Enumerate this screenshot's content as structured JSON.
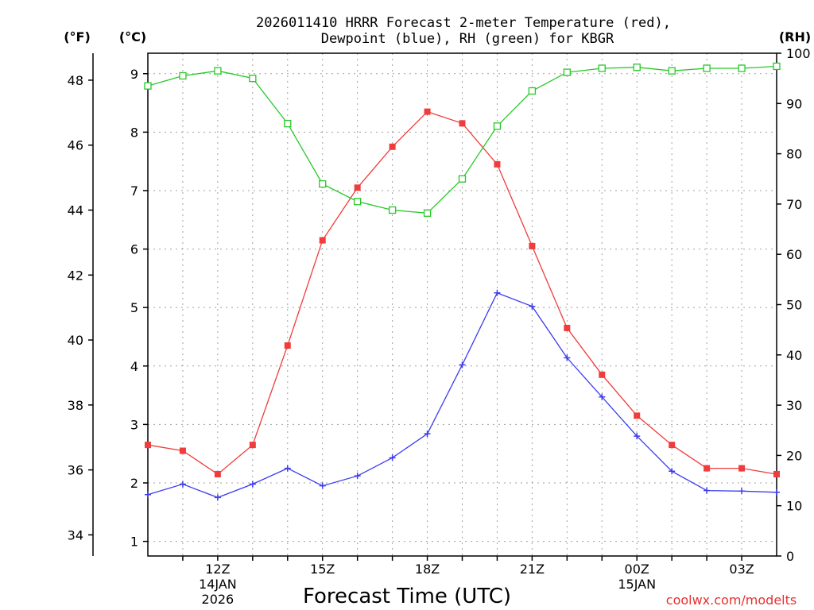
{
  "chart_data": {
    "type": "line",
    "title_line1": "2026011410 HRRR Forecast 2-meter Temperature (red),",
    "title_line2": "Dewpoint (blue), RH (green) for KBGR",
    "unit_f": "(°F)",
    "unit_c": "(°C)",
    "unit_rh": "(RH)",
    "xlabel": "Forecast Time (UTC)",
    "credit": "coolwx.com/modelts",
    "x": [
      10,
      11,
      12,
      13,
      14,
      15,
      16,
      17,
      18,
      19,
      20,
      21,
      22,
      23,
      24,
      25,
      26,
      27,
      28
    ],
    "xlim": [
      10,
      28
    ],
    "x_ticks": [
      {
        "x": 12,
        "label": "12Z",
        "sub1": "14JAN",
        "sub2": "2026"
      },
      {
        "x": 15,
        "label": "15Z",
        "sub1": "",
        "sub2": ""
      },
      {
        "x": 18,
        "label": "18Z",
        "sub1": "",
        "sub2": ""
      },
      {
        "x": 21,
        "label": "21Z",
        "sub1": "",
        "sub2": ""
      },
      {
        "x": 24,
        "label": "00Z",
        "sub1": "15JAN",
        "sub2": ""
      },
      {
        "x": 27,
        "label": "03Z",
        "sub1": "",
        "sub2": ""
      }
    ],
    "c_axis": {
      "ylim": [
        0.75,
        9.35
      ],
      "ticks": [
        "1",
        "2",
        "3",
        "4",
        "5",
        "6",
        "7",
        "8",
        "9"
      ]
    },
    "f_axis": {
      "ticks": [
        "34",
        "36",
        "38",
        "40",
        "42",
        "44",
        "46",
        "48"
      ]
    },
    "rh_axis": {
      "ylim": [
        0,
        100
      ],
      "ticks": [
        "0",
        "10",
        "20",
        "30",
        "40",
        "50",
        "60",
        "70",
        "80",
        "90",
        "100"
      ]
    },
    "series": [
      {
        "name": "Temperature",
        "units": "C",
        "color": "#f03c3c",
        "marker": "filled-square",
        "values": [
          2.65,
          2.55,
          2.15,
          2.65,
          4.35,
          6.15,
          7.05,
          7.75,
          8.35,
          8.15,
          7.45,
          6.05,
          4.65,
          3.85,
          3.15,
          2.65,
          2.25,
          2.25,
          2.15
        ]
      },
      {
        "name": "Dewpoint",
        "units": "C",
        "color": "#3c3cf0",
        "marker": "plus",
        "values": [
          1.8,
          1.98,
          1.75,
          1.98,
          2.25,
          1.95,
          2.12,
          2.43,
          2.84,
          4.02,
          5.25,
          5.02,
          4.14,
          3.47,
          2.8,
          2.2,
          1.87,
          1.86,
          1.84
        ]
      },
      {
        "name": "RH",
        "units": "%",
        "color": "#28c828",
        "marker": "open-square",
        "values": [
          93.5,
          95.5,
          96.5,
          95.0,
          86.0,
          74.0,
          70.5,
          68.8,
          68.2,
          75.0,
          85.5,
          92.5,
          96.2,
          97.0,
          97.2,
          96.5,
          97.0,
          97.0,
          97.4
        ]
      }
    ]
  }
}
